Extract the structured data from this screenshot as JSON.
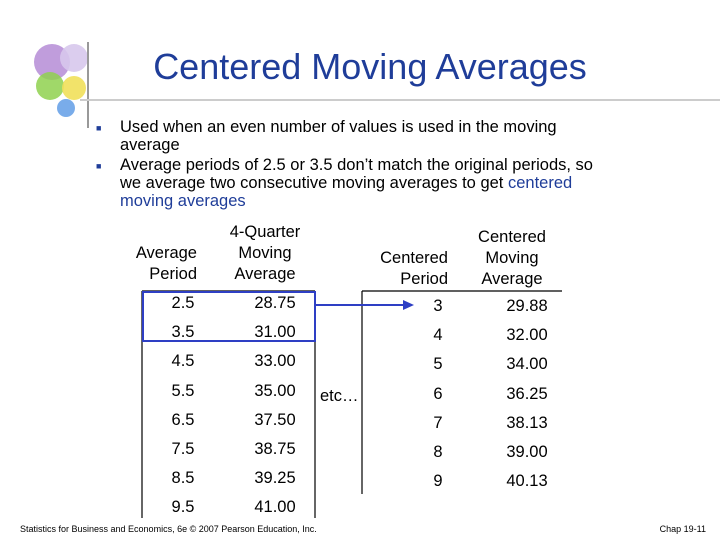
{
  "title": "Centered Moving Averages",
  "bullets": [
    {
      "parts": [
        "Used when an even number of values is used in the moving average"
      ]
    },
    {
      "parts": [
        "Average periods of 2.5 or 3.5 don’t match the original periods, so we average two consecutive moving averages to get ",
        "centered moving averages"
      ]
    }
  ],
  "left_table": {
    "headers": [
      [
        "Average",
        "Period"
      ],
      [
        "4-Quarter",
        "Moving",
        "Average"
      ]
    ],
    "rows": [
      [
        "2.5",
        "28.75"
      ],
      [
        "3.5",
        "31.00"
      ],
      [
        "4.5",
        "33.00"
      ],
      [
        "5.5",
        "35.00"
      ],
      [
        "6.5",
        "37.50"
      ],
      [
        "7.5",
        "38.75"
      ],
      [
        "8.5",
        "39.25"
      ],
      [
        "9.5",
        "41.00"
      ]
    ]
  },
  "right_table": {
    "headers": [
      [
        "Centered",
        "Period"
      ],
      [
        "Centered",
        "Moving",
        "Average"
      ]
    ],
    "rows": [
      [
        "3",
        "29.88"
      ],
      [
        "4",
        "32.00"
      ],
      [
        "5",
        "34.00"
      ],
      [
        "6",
        "36.25"
      ],
      [
        "7",
        "38.13"
      ],
      [
        "8",
        "39.00"
      ],
      [
        "9",
        "40.13"
      ]
    ]
  },
  "annotation": "etc…",
  "footer": {
    "left": "Statistics for Business and Economics, 6e © 2007 Pearson Education, Inc.",
    "right": "Chap 19-11"
  }
}
